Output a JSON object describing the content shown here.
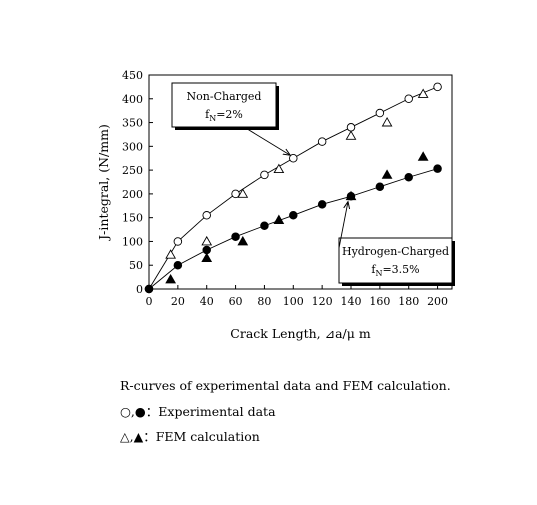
{
  "chart_data": {
    "type": "scatter",
    "xlabel": "Crack Length, ⊿a/μ m",
    "ylabel": "J-integral, (N/mm)",
    "xlim": [
      0,
      210
    ],
    "ylim": [
      0,
      450
    ],
    "x_ticks": [
      0,
      20,
      40,
      60,
      80,
      100,
      120,
      140,
      160,
      180,
      200
    ],
    "y_ticks": [
      0,
      50,
      100,
      150,
      200,
      250,
      300,
      350,
      400,
      450
    ],
    "grid": false,
    "series": [
      {
        "marker": "open-circle",
        "line": true,
        "x": [
          0,
          20,
          40,
          60,
          80,
          100,
          120,
          140,
          160,
          180,
          200
        ],
        "y": [
          0,
          100,
          155,
          200,
          240,
          275,
          310,
          340,
          370,
          400,
          425
        ]
      },
      {
        "marker": "open-triangle",
        "line": false,
        "x": [
          15,
          40,
          65,
          90,
          140,
          165,
          190
        ],
        "y": [
          72,
          100,
          200,
          252,
          322,
          350,
          410
        ]
      },
      {
        "marker": "filled-circle",
        "line": true,
        "x": [
          0,
          20,
          40,
          60,
          80,
          100,
          120,
          140,
          160,
          180,
          200
        ],
        "y": [
          0,
          50,
          82,
          110,
          133,
          155,
          178,
          195,
          215,
          235,
          253
        ]
      },
      {
        "marker": "filled-triangle",
        "line": false,
        "x": [
          15,
          40,
          65,
          90,
          140,
          165,
          190
        ],
        "y": [
          20,
          65,
          100,
          145,
          195,
          240,
          278
        ]
      }
    ],
    "annotations": [
      {
        "name": "non-charged",
        "line1": "Non-Charged",
        "line2_main": "f",
        "line2_sub": "N",
        "line2_rest": "=2%",
        "arrow_to": [
          100,
          275
        ]
      },
      {
        "name": "hydrogen-charged",
        "line1": "Hydrogen-Charged",
        "line2_main": "f",
        "line2_sub": "N",
        "line2_rest": "=3.5%",
        "arrow_to": [
          140,
          190
        ]
      }
    ]
  },
  "caption": {
    "title": "R-curves of experimental data and FEM calculation.",
    "exp_symbols": "○,●",
    "exp_label": "：Experimental data",
    "fem_symbols": "△,▲",
    "fem_label": "：FEM calculation"
  }
}
